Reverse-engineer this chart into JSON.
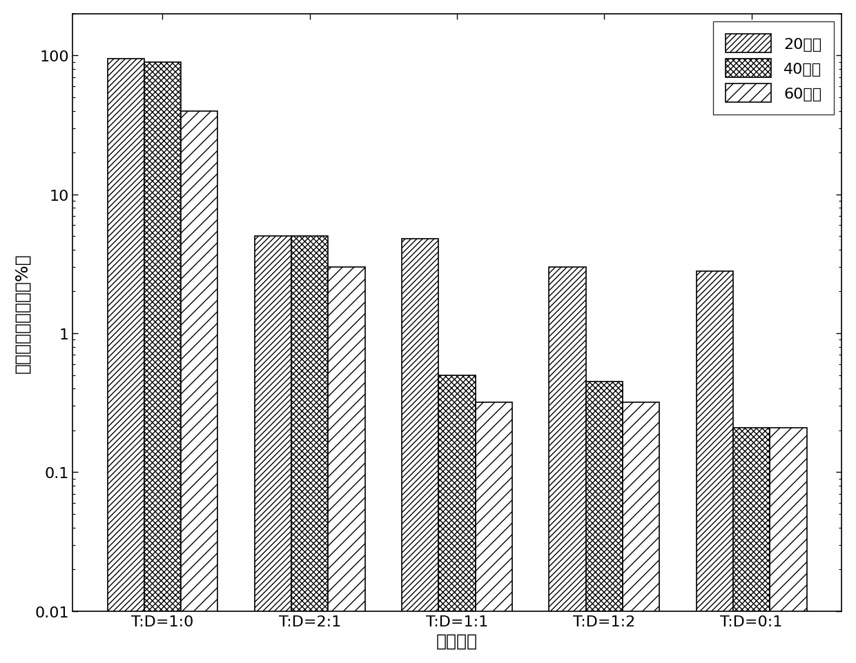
{
  "categories": [
    "T:D=1:0",
    "T:D=2:1",
    "T:D=1:1",
    "T:D=1:2",
    "T:D=0:1"
  ],
  "series": {
    "20分钟": [
      95,
      5.0,
      4.8,
      3.0,
      2.8
    ],
    "40分钟": [
      90,
      5.0,
      0.5,
      0.45,
      0.21
    ],
    "60分钟": [
      40,
      3.0,
      0.32,
      0.32,
      0.21
    ]
  },
  "hatches": [
    "////",
    "/\\/\\",
    "////"
  ],
  "hatch_densities": [
    4,
    2,
    1
  ],
  "colors": [
    "white",
    "white",
    "white"
  ],
  "edgecolors": [
    "black",
    "black",
    "black"
  ],
  "ylabel": "细菌存活数百分比（%）",
  "xlabel": "大肠杆菌",
  "ylim_min": 0.01,
  "ylim_max": 200,
  "legend_labels": [
    "20分钟",
    "40分钟",
    "60分钟"
  ],
  "bar_width": 0.25,
  "label_fontsize": 18,
  "tick_fontsize": 16,
  "legend_fontsize": 16,
  "figsize": [
    12.4,
    9.62
  ],
  "dpi": 100
}
